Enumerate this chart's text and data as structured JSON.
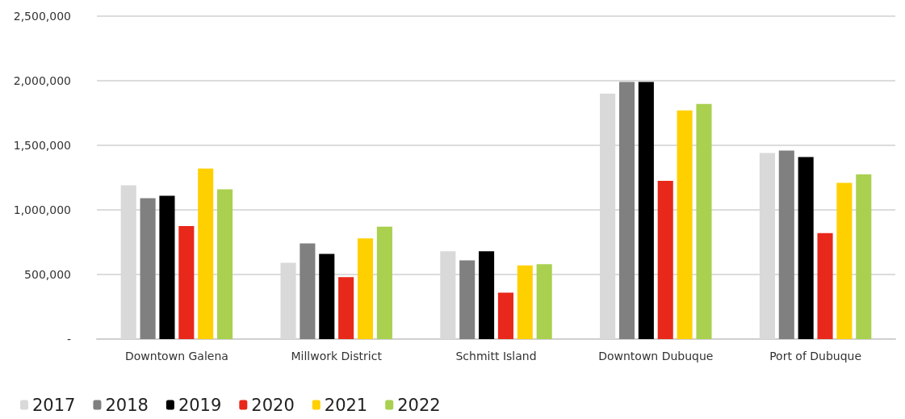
{
  "chart_data": {
    "type": "bar",
    "categories": [
      "Downtown Galena",
      "Millwork District",
      "Schmitt Island",
      "Downtown Dubuque",
      "Port of Dubuque"
    ],
    "series": [
      {
        "name": "2017",
        "color": "#d9d9d9",
        "values": [
          1190000,
          590000,
          680000,
          1900000,
          1440000
        ]
      },
      {
        "name": "2018",
        "color": "#808080",
        "values": [
          1090000,
          740000,
          610000,
          1990000,
          1460000
        ]
      },
      {
        "name": "2019",
        "color": "#000000",
        "values": [
          1110000,
          660000,
          680000,
          1990000,
          1410000
        ]
      },
      {
        "name": "2020",
        "color": "#e8281a",
        "values": [
          875000,
          480000,
          360000,
          1225000,
          820000
        ]
      },
      {
        "name": "2021",
        "color": "#ffd000",
        "values": [
          1320000,
          780000,
          570000,
          1770000,
          1210000
        ]
      },
      {
        "name": "2022",
        "color": "#a9d04f",
        "values": [
          1160000,
          870000,
          580000,
          1820000,
          1275000
        ]
      }
    ],
    "ylim": [
      0,
      2500000
    ],
    "yticks": [
      {
        "value": 0,
        "label": "-"
      },
      {
        "value": 500000,
        "label": "500,000"
      },
      {
        "value": 1000000,
        "label": "1,000,000"
      },
      {
        "value": 1500000,
        "label": "1,500,000"
      },
      {
        "value": 2000000,
        "label": "2,000,000"
      },
      {
        "value": 2500000,
        "label": "2,500,000"
      }
    ],
    "grid": "y",
    "legend": "bottom left"
  }
}
